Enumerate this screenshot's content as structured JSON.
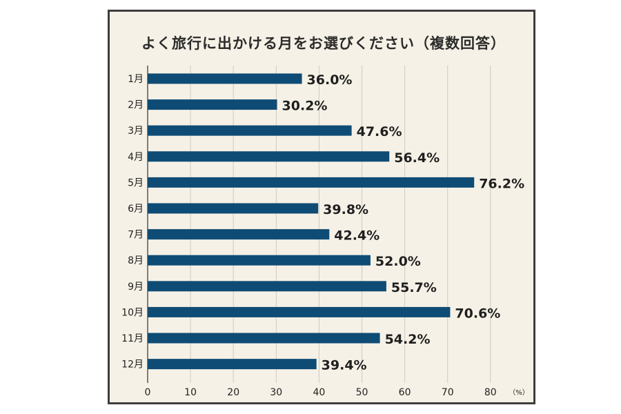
{
  "chart_data": {
    "type": "bar",
    "orientation": "horizontal",
    "title": "よく旅行に出かける月をお選びください（複数回答）",
    "categories": [
      "1月",
      "2月",
      "3月",
      "4月",
      "5月",
      "6月",
      "7月",
      "8月",
      "9月",
      "10月",
      "11月",
      "12月"
    ],
    "values": [
      36.0,
      30.2,
      47.6,
      56.4,
      76.2,
      39.8,
      42.4,
      52.0,
      55.7,
      70.6,
      54.2,
      39.4
    ],
    "value_labels": [
      "36.0%",
      "30.2%",
      "47.6%",
      "56.4%",
      "76.2%",
      "39.8%",
      "42.4%",
      "52.0%",
      "55.7%",
      "70.6%",
      "54.2%",
      "39.4%"
    ],
    "xticks": [
      0,
      10,
      20,
      30,
      40,
      50,
      60,
      70,
      80
    ],
    "xunit": "（%）",
    "xlim": [
      0,
      80
    ],
    "grid": true,
    "colors": {
      "bar": "#0f4c75",
      "panel": "#f6f1e6",
      "border": "#3d3d3d",
      "grid": "#cfcac0",
      "text": "#1f1f1f"
    }
  }
}
